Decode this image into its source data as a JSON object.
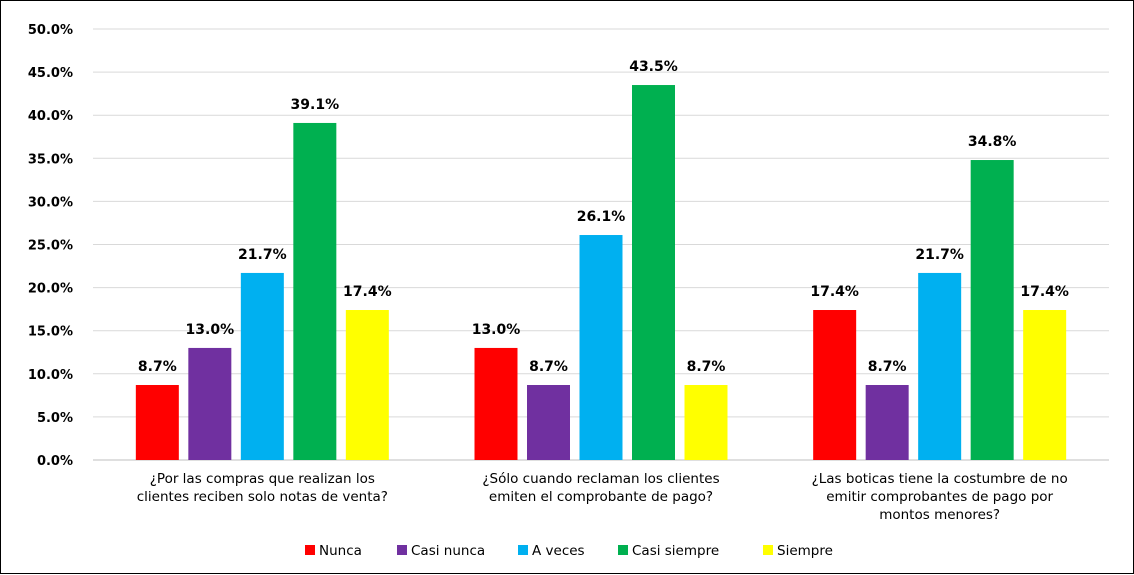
{
  "chart_data": {
    "type": "bar",
    "title": "",
    "xlabel": "",
    "ylabel": "",
    "ylim": [
      0,
      50
    ],
    "y_ticks": [
      "0.0%",
      "5.0%",
      "10.0%",
      "15.0%",
      "20.0%",
      "25.0%",
      "30.0%",
      "35.0%",
      "40.0%",
      "45.0%",
      "50.0%"
    ],
    "grid": true,
    "legend_position": "bottom",
    "categories": [
      [
        "¿Por las compras que realizan los",
        "clientes reciben solo notas de venta?"
      ],
      [
        "¿Sólo cuando reclaman los clientes",
        "emiten el comprobante de pago?"
      ],
      [
        "¿Las boticas tiene la costumbre de no",
        "emitir comprobantes de pago por",
        "montos menores?"
      ]
    ],
    "series": [
      {
        "name": "Nunca",
        "color": "#ff0000",
        "values": [
          8.7,
          13.0,
          17.4
        ],
        "labels": [
          "8.7%",
          "13.0%",
          "17.4%"
        ]
      },
      {
        "name": "Casi nunca",
        "color": "#7030a0",
        "values": [
          13.0,
          8.7,
          8.7
        ],
        "labels": [
          "13.0%",
          "8.7%",
          "8.7%"
        ]
      },
      {
        "name": "A veces",
        "color": "#00b0f0",
        "values": [
          21.7,
          26.1,
          21.7
        ],
        "labels": [
          "21.7%",
          "26.1%",
          "21.7%"
        ]
      },
      {
        "name": "Casi siempre",
        "color": "#00b050",
        "values": [
          39.1,
          43.5,
          34.8
        ],
        "labels": [
          "39.1%",
          "43.5%",
          "34.8%"
        ]
      },
      {
        "name": "Siempre",
        "color": "#ffff00",
        "values": [
          17.4,
          8.7,
          17.4
        ],
        "labels": [
          "17.4%",
          "8.7%",
          "17.4%"
        ]
      }
    ]
  }
}
